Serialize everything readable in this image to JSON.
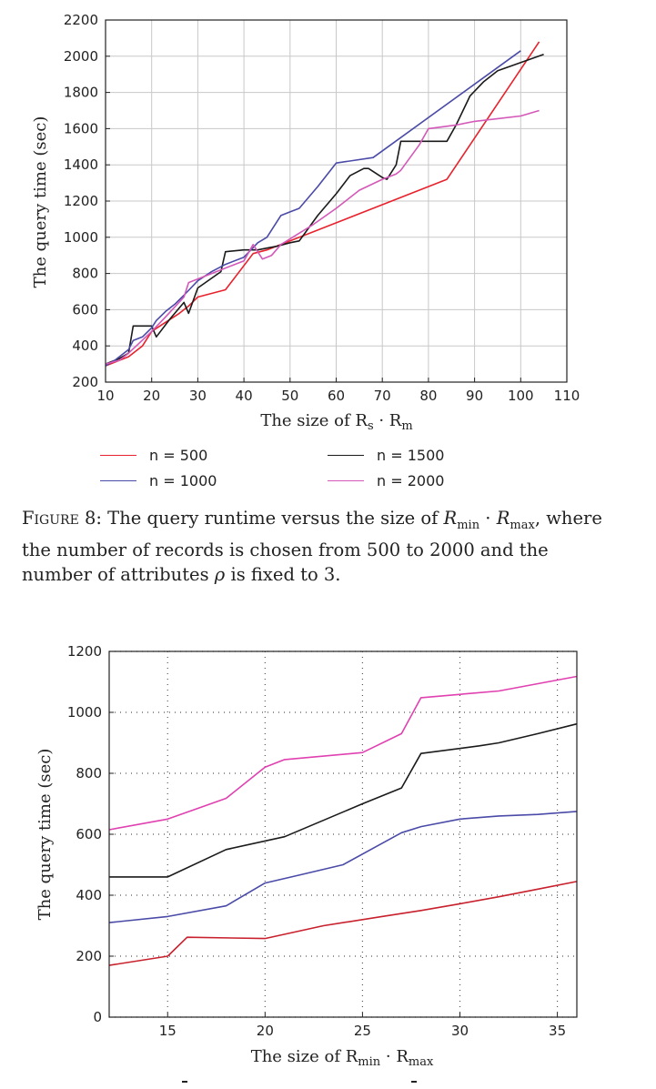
{
  "chart_data": [
    {
      "type": "line",
      "title": "",
      "xlabel_base": "The size of R",
      "xlabel_sub1": "s",
      "xlabel_mid": " · R",
      "xlabel_sub2": "m",
      "ylabel": "The query time (sec)",
      "xlim": [
        10,
        110
      ],
      "ylim": [
        200,
        2200
      ],
      "xticks": [
        10,
        20,
        30,
        40,
        50,
        60,
        70,
        80,
        90,
        100,
        110
      ],
      "yticks": [
        200,
        400,
        600,
        800,
        1000,
        1200,
        1400,
        1600,
        1800,
        2000,
        2200
      ],
      "grid": true,
      "legend_position": "below",
      "series": [
        {
          "name": "n = 500",
          "color": "#e8222c",
          "points": [
            [
              10,
              290
            ],
            [
              12,
              310
            ],
            [
              15,
              340
            ],
            [
              18,
              400
            ],
            [
              20,
              480
            ],
            [
              23,
              530
            ],
            [
              26,
              580
            ],
            [
              28,
              620
            ],
            [
              30,
              670
            ],
            [
              36,
              710
            ],
            [
              42,
              910
            ],
            [
              45,
              930
            ],
            [
              48,
              960
            ],
            [
              50,
              980
            ],
            [
              84,
              1320
            ],
            [
              104,
              2080
            ]
          ]
        },
        {
          "name": "n = 1500",
          "color": "#1a1a1a",
          "points": [
            [
              10,
              300
            ],
            [
              13,
              330
            ],
            [
              15,
              360
            ],
            [
              16,
              510
            ],
            [
              20,
              510
            ],
            [
              21,
              450
            ],
            [
              24,
              550
            ],
            [
              27,
              640
            ],
            [
              28,
              580
            ],
            [
              30,
              720
            ],
            [
              35,
              810
            ],
            [
              36,
              920
            ],
            [
              40,
              930
            ],
            [
              43,
              930
            ],
            [
              45,
              940
            ],
            [
              47,
              950
            ],
            [
              50,
              970
            ],
            [
              52,
              980
            ],
            [
              56,
              1120
            ],
            [
              60,
              1240
            ],
            [
              63,
              1340
            ],
            [
              66,
              1380
            ],
            [
              67,
              1380
            ],
            [
              70,
              1330
            ],
            [
              71,
              1320
            ],
            [
              73,
              1400
            ],
            [
              74,
              1530
            ],
            [
              78,
              1530
            ],
            [
              84,
              1530
            ],
            [
              86,
              1620
            ],
            [
              89,
              1780
            ],
            [
              92,
              1860
            ],
            [
              95,
              1920
            ],
            [
              105,
              2010
            ]
          ]
        },
        {
          "name": "n = 1000",
          "color": "#4a4aa8",
          "points": [
            [
              10,
              290
            ],
            [
              12,
              320
            ],
            [
              15,
              380
            ],
            [
              16,
              430
            ],
            [
              18,
              450
            ],
            [
              20,
              500
            ],
            [
              21,
              540
            ],
            [
              23,
              590
            ],
            [
              25,
              630
            ],
            [
              27,
              680
            ],
            [
              30,
              760
            ],
            [
              33,
              810
            ],
            [
              36,
              850
            ],
            [
              40,
              890
            ],
            [
              43,
              970
            ],
            [
              45,
              1000
            ],
            [
              48,
              1120
            ],
            [
              50,
              1140
            ],
            [
              52,
              1160
            ],
            [
              56,
              1280
            ],
            [
              60,
              1410
            ],
            [
              68,
              1440
            ],
            [
              100,
              2030
            ]
          ]
        },
        {
          "name": "n = 2000",
          "color": "#d458b8",
          "points": [
            [
              10,
              300
            ],
            [
              13,
              320
            ],
            [
              15,
              360
            ],
            [
              20,
              480
            ],
            [
              23,
              560
            ],
            [
              27,
              670
            ],
            [
              28,
              750
            ],
            [
              31,
              780
            ],
            [
              35,
              820
            ],
            [
              40,
              870
            ],
            [
              42,
              960
            ],
            [
              44,
              880
            ],
            [
              46,
              900
            ],
            [
              48,
              960
            ],
            [
              55,
              1070
            ],
            [
              60,
              1160
            ],
            [
              65,
              1260
            ],
            [
              70,
              1320
            ],
            [
              73,
              1350
            ],
            [
              74,
              1370
            ],
            [
              78,
              1510
            ],
            [
              80,
              1600
            ],
            [
              86,
              1620
            ],
            [
              90,
              1640
            ],
            [
              100,
              1670
            ],
            [
              104,
              1700
            ]
          ]
        }
      ]
    },
    {
      "type": "line",
      "title": "",
      "xlabel_base": "The size of R",
      "xlabel_sub1": "min",
      "xlabel_mid": " · R",
      "xlabel_sub2": "max",
      "ylabel": "The query time (sec)",
      "xlim": [
        12,
        36
      ],
      "ylim": [
        0,
        1200
      ],
      "xticks": [
        15,
        20,
        25,
        30,
        35
      ],
      "yticks": [
        0,
        200,
        400,
        600,
        800,
        1000,
        1200
      ],
      "grid": "dotted",
      "series": [
        {
          "color": "#c8202c",
          "points": [
            [
              12,
              170
            ],
            [
              15,
              200
            ],
            [
              16,
              262
            ],
            [
              20,
              258
            ],
            [
              23,
              300
            ],
            [
              26,
              330
            ],
            [
              28,
              350
            ],
            [
              30,
              372
            ],
            [
              32,
              395
            ],
            [
              34,
              420
            ],
            [
              36,
              445
            ]
          ]
        },
        {
          "color": "#4a4aa8",
          "points": [
            [
              12,
              310
            ],
            [
              15,
              330
            ],
            [
              18,
              365
            ],
            [
              20,
              440
            ],
            [
              22,
              470
            ],
            [
              24,
              500
            ],
            [
              26,
              570
            ],
            [
              27,
              605
            ],
            [
              28,
              625
            ],
            [
              30,
              650
            ],
            [
              32,
              660
            ],
            [
              34,
              665
            ],
            [
              36,
              675
            ]
          ]
        },
        {
          "color": "#1a1a1a",
          "points": [
            [
              12,
              460
            ],
            [
              15,
              460
            ],
            [
              18,
              550
            ],
            [
              21,
              592
            ],
            [
              25,
              700
            ],
            [
              27,
              752
            ],
            [
              28,
              865
            ],
            [
              31,
              890
            ],
            [
              32,
              900
            ],
            [
              34,
              930
            ],
            [
              36,
              962
            ]
          ]
        },
        {
          "color": "#e040b0",
          "points": [
            [
              12,
              615
            ],
            [
              15,
              650
            ],
            [
              18,
              718
            ],
            [
              20,
              820
            ],
            [
              21,
              845
            ],
            [
              25,
              868
            ],
            [
              27,
              930
            ],
            [
              28,
              1048
            ],
            [
              32,
              1070
            ],
            [
              36,
              1118
            ]
          ]
        }
      ]
    }
  ],
  "caption": {
    "label": "Figure 8:",
    "text_a": " The query runtime versus the size of ",
    "r1": "R",
    "r1_sub": "min",
    "dot": " · ",
    "r2": "R",
    "r2_sub": "max",
    "text_b": ", where the number of records is chosen from 500 to 2000 and the number of attributes ",
    "rho": "ρ",
    "text_c": " is fixed to 3."
  }
}
